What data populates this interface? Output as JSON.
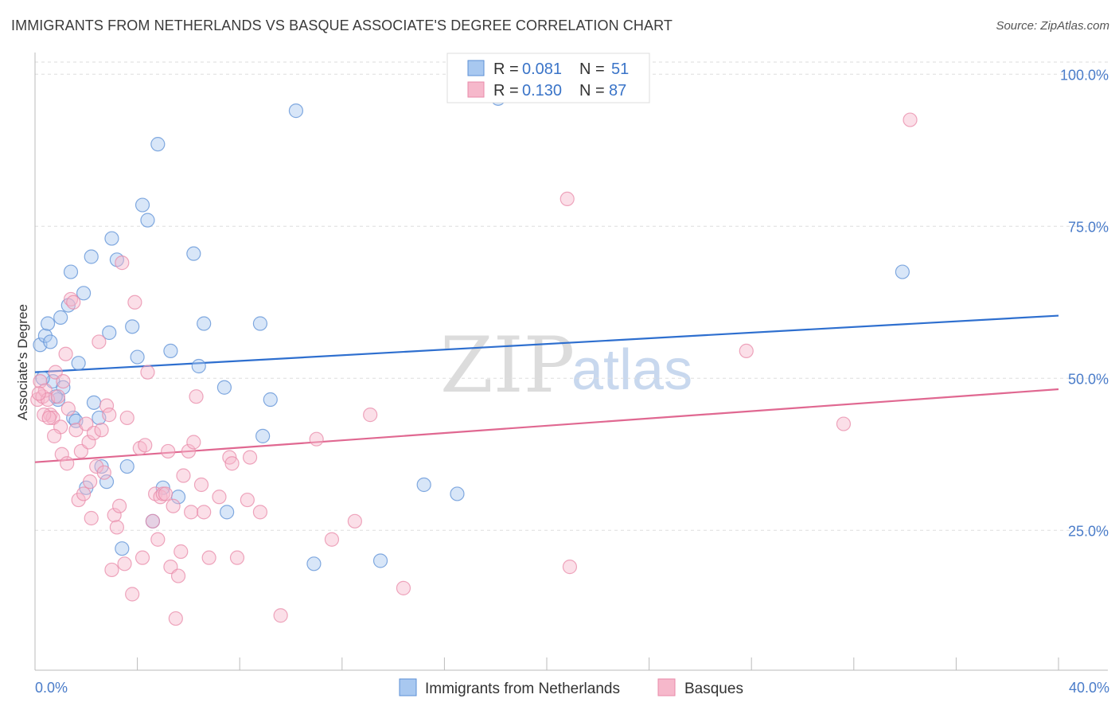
{
  "title": "IMMIGRANTS FROM NETHERLANDS VS BASQUE ASSOCIATE'S DEGREE CORRELATION CHART",
  "source": "Source: ZipAtlas.com",
  "watermark": {
    "zip": "ZIP",
    "atlas": "atlas"
  },
  "colors": {
    "blue_fill": "#a8c8f0",
    "blue_stroke": "#5b8fd6",
    "blue_line": "#2e6fcf",
    "pink_fill": "#f6b8cb",
    "pink_stroke": "#e88aa8",
    "pink_line": "#e06891",
    "tick_text": "#4a7cc9",
    "grid": "#dddddd"
  },
  "legend": {
    "rows": [
      {
        "r_label": "R =",
        "r_value": "0.081",
        "n_label": "N =",
        "n_value": "51"
      },
      {
        "r_label": "R =",
        "r_value": "0.130",
        "n_label": "N =",
        "n_value": "87"
      }
    ]
  },
  "chart_data": {
    "type": "scatter",
    "title": "IMMIGRANTS FROM NETHERLANDS VS BASQUE ASSOCIATE'S DEGREE CORRELATION CHART",
    "xlabel": "",
    "ylabel": "Associate's Degree",
    "xlim": [
      0,
      40
    ],
    "ylim": [
      2,
      102
    ],
    "x_tick_labels": [
      "0.0%",
      "40.0%"
    ],
    "y_ticks": [
      25,
      50,
      75,
      100
    ],
    "y_tick_labels": [
      "25.0%",
      "50.0%",
      "75.0%",
      "100.0%"
    ],
    "series": [
      {
        "name": "Immigrants from Netherlands",
        "color": "blue",
        "trend": {
          "x": [
            0,
            40
          ],
          "y": [
            51,
            60.3
          ]
        },
        "points": [
          [
            0.2,
            55.5
          ],
          [
            0.4,
            57
          ],
          [
            0.5,
            59
          ],
          [
            0.6,
            56
          ],
          [
            0.7,
            49.5
          ],
          [
            0.9,
            46.5
          ],
          [
            1.0,
            60
          ],
          [
            1.1,
            48.5
          ],
          [
            1.3,
            62
          ],
          [
            1.4,
            67.5
          ],
          [
            1.5,
            43.5
          ],
          [
            1.7,
            52.5
          ],
          [
            1.9,
            64
          ],
          [
            2.2,
            70
          ],
          [
            2.3,
            46
          ],
          [
            2.5,
            43.5
          ],
          [
            2.6,
            35.5
          ],
          [
            2.8,
            33
          ],
          [
            2.9,
            57.5
          ],
          [
            3.0,
            73
          ],
          [
            3.2,
            69.5
          ],
          [
            3.4,
            22
          ],
          [
            3.6,
            35.5
          ],
          [
            3.8,
            58.5
          ],
          [
            4.0,
            53.5
          ],
          [
            4.2,
            78.5
          ],
          [
            4.4,
            76
          ],
          [
            4.6,
            26.5
          ],
          [
            4.8,
            88.5
          ],
          [
            5.0,
            32
          ],
          [
            5.3,
            54.5
          ],
          [
            5.6,
            30.5
          ],
          [
            6.2,
            70.5
          ],
          [
            6.4,
            52
          ],
          [
            6.6,
            59
          ],
          [
            7.4,
            48.5
          ],
          [
            7.5,
            28
          ],
          [
            8.8,
            59
          ],
          [
            8.9,
            40.5
          ],
          [
            9.2,
            46.5
          ],
          [
            10.2,
            94
          ],
          [
            10.9,
            19.5
          ],
          [
            13.5,
            20
          ],
          [
            15.2,
            32.5
          ],
          [
            16.5,
            31
          ],
          [
            18.1,
            96
          ],
          [
            33.9,
            67.5
          ],
          [
            0.8,
            47
          ],
          [
            1.6,
            43
          ],
          [
            2.0,
            32
          ],
          [
            0.3,
            50
          ]
        ]
      },
      {
        "name": "Basques",
        "color": "pink",
        "trend": {
          "x": [
            0,
            40
          ],
          "y": [
            36.2,
            48.2
          ]
        },
        "points": [
          [
            0.1,
            46.5
          ],
          [
            0.2,
            49.5
          ],
          [
            0.3,
            47
          ],
          [
            0.4,
            48
          ],
          [
            0.5,
            46.5
          ],
          [
            0.6,
            44
          ],
          [
            0.7,
            43.5
          ],
          [
            0.8,
            51
          ],
          [
            0.9,
            47
          ],
          [
            1.0,
            42
          ],
          [
            1.1,
            49.5
          ],
          [
            1.2,
            54
          ],
          [
            1.3,
            45
          ],
          [
            1.4,
            63
          ],
          [
            1.5,
            62.5
          ],
          [
            1.6,
            41.5
          ],
          [
            1.7,
            30
          ],
          [
            1.8,
            38
          ],
          [
            1.9,
            31
          ],
          [
            2.0,
            42.5
          ],
          [
            2.1,
            39.5
          ],
          [
            2.2,
            27
          ],
          [
            2.3,
            41
          ],
          [
            2.4,
            35.5
          ],
          [
            2.5,
            56
          ],
          [
            2.6,
            41.5
          ],
          [
            2.7,
            34.5
          ],
          [
            2.8,
            45.5
          ],
          [
            2.9,
            44
          ],
          [
            3.0,
            18.5
          ],
          [
            3.1,
            27.5
          ],
          [
            3.2,
            25.5
          ],
          [
            3.3,
            29
          ],
          [
            3.4,
            69
          ],
          [
            3.5,
            19.5
          ],
          [
            3.6,
            43.5
          ],
          [
            3.8,
            14.5
          ],
          [
            3.9,
            62.5
          ],
          [
            4.1,
            38.5
          ],
          [
            4.2,
            20.5
          ],
          [
            4.3,
            39
          ],
          [
            4.4,
            51
          ],
          [
            4.6,
            26.5
          ],
          [
            4.7,
            31
          ],
          [
            4.8,
            23.5
          ],
          [
            4.9,
            30.5
          ],
          [
            5.0,
            31
          ],
          [
            5.1,
            31
          ],
          [
            5.2,
            38
          ],
          [
            5.3,
            19
          ],
          [
            5.4,
            29
          ],
          [
            5.5,
            10.5
          ],
          [
            5.6,
            17.5
          ],
          [
            5.7,
            21.5
          ],
          [
            5.8,
            34
          ],
          [
            6.0,
            38
          ],
          [
            6.1,
            28
          ],
          [
            6.2,
            39.5
          ],
          [
            6.3,
            47
          ],
          [
            6.6,
            28
          ],
          [
            6.8,
            20.5
          ],
          [
            7.6,
            37
          ],
          [
            7.7,
            36
          ],
          [
            7.9,
            20.5
          ],
          [
            8.3,
            30
          ],
          [
            8.4,
            37
          ],
          [
            8.8,
            28
          ],
          [
            9.6,
            11
          ],
          [
            11.0,
            40
          ],
          [
            11.6,
            23.5
          ],
          [
            12.5,
            26.5
          ],
          [
            13.1,
            44
          ],
          [
            14.4,
            15.5
          ],
          [
            20.8,
            79.5
          ],
          [
            20.9,
            19
          ],
          [
            27.8,
            54.5
          ],
          [
            31.6,
            42.5
          ],
          [
            34.2,
            92.5
          ],
          [
            0.15,
            47.5
          ],
          [
            0.35,
            44
          ],
          [
            0.55,
            43.5
          ],
          [
            0.75,
            40.5
          ],
          [
            1.05,
            37.5
          ],
          [
            1.25,
            36
          ],
          [
            2.15,
            33
          ],
          [
            6.5,
            32.5
          ],
          [
            7.2,
            30.5
          ]
        ]
      }
    ]
  },
  "bottom_legend": [
    {
      "label": "Immigrants from Netherlands",
      "color": "blue"
    },
    {
      "label": "Basques",
      "color": "pink"
    }
  ]
}
